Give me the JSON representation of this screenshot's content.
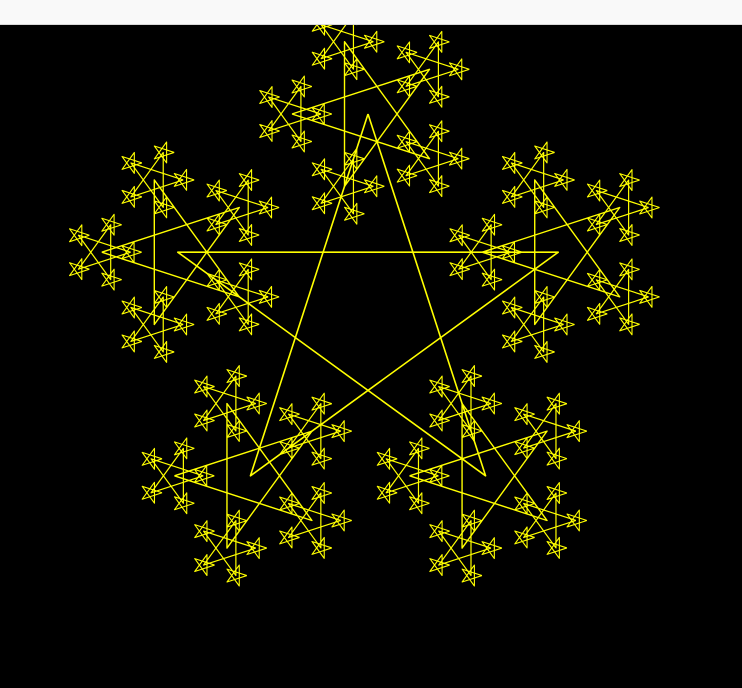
{
  "window": {
    "title": ""
  },
  "canvas": {
    "background_color": "#000000",
    "stroke_color": "#FFFF00",
    "figure": "recursive-pentagram-fractal",
    "recursion_levels": 4
  }
}
